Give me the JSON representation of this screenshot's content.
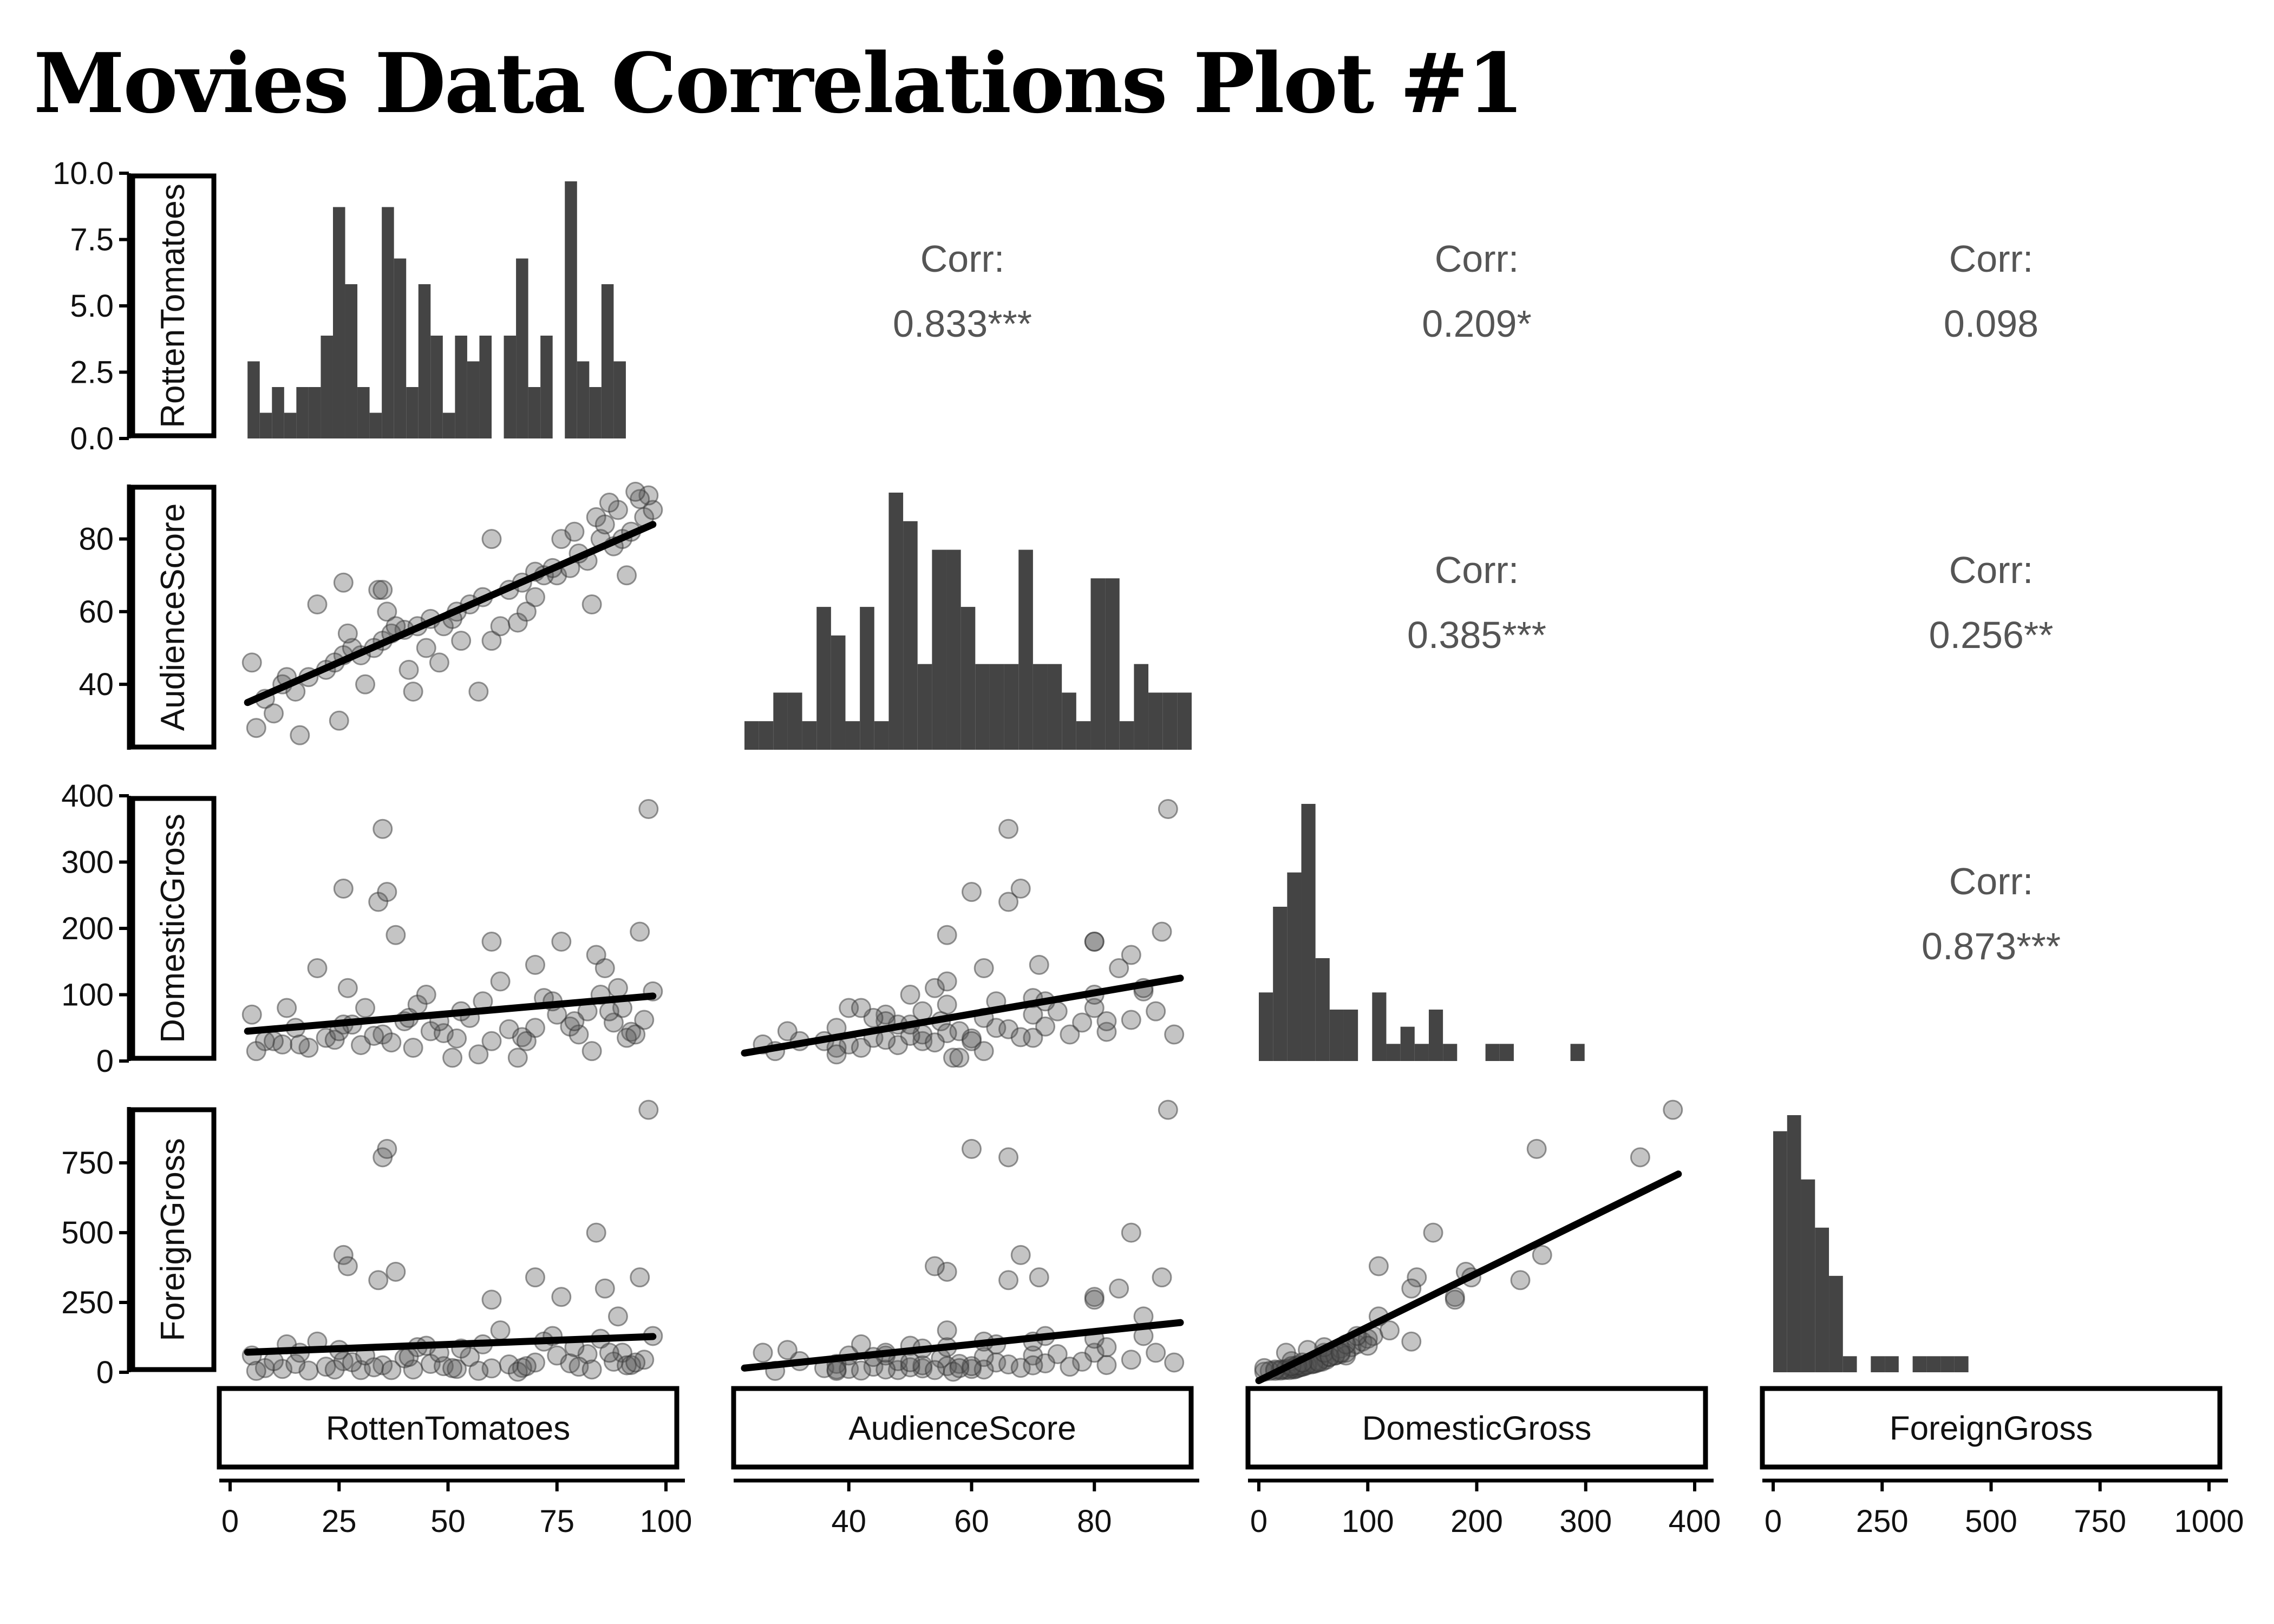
{
  "title": "Movies Data Correlations Plot #1",
  "colors": {
    "bar": "#444444",
    "point": "#555555",
    "line": "#000000",
    "corr": "#555555"
  },
  "chart_data": {
    "type": "scatter",
    "title": "Movies Data Correlations Plot #1",
    "variables": [
      "RottenTomatoes",
      "AudienceScore",
      "DomesticGross",
      "ForeignGross"
    ],
    "x_ranges": [
      [
        0,
        100
      ],
      [
        23,
        94
      ],
      [
        0,
        400
      ],
      [
        0,
        1000
      ]
    ],
    "x_ticks": [
      [
        0,
        25,
        50,
        75,
        100
      ],
      [
        40,
        60,
        80
      ],
      [
        0,
        100,
        200,
        300,
        400
      ],
      [
        0,
        250,
        500,
        750,
        1000
      ]
    ],
    "x_tick_labels": [
      [
        "0",
        "25",
        "50",
        "75",
        "100"
      ],
      [
        "40",
        "60",
        "80"
      ],
      [
        "0",
        "100",
        "200",
        "300",
        "400"
      ],
      [
        "0",
        "250",
        "500",
        "750",
        "1000"
      ]
    ],
    "y_ranges": [
      [
        0,
        10
      ],
      [
        22,
        95
      ],
      [
        0,
        400
      ],
      [
        0,
        950
      ]
    ],
    "y_ticks": [
      [
        0,
        2.5,
        5,
        7.5,
        10
      ],
      [
        40,
        60,
        80
      ],
      [
        0,
        100,
        200,
        300,
        400
      ],
      [
        0,
        250,
        500,
        750
      ]
    ],
    "y_tick_labels": [
      [
        "0.0",
        "2.5",
        "5.0",
        "7.5",
        "10.0"
      ],
      [
        "40",
        "60",
        "80"
      ],
      [
        "0",
        "100",
        "200",
        "300",
        "400"
      ],
      [
        "0",
        "250",
        "500",
        "750"
      ]
    ],
    "correlations": [
      {
        "row": 0,
        "col": 1,
        "label": "Corr:",
        "value": "0.833***"
      },
      {
        "row": 0,
        "col": 2,
        "label": "Corr:",
        "value": "0.209*"
      },
      {
        "row": 0,
        "col": 3,
        "label": "Corr:",
        "value": "0.098"
      },
      {
        "row": 1,
        "col": 2,
        "label": "Corr:",
        "value": "0.385***"
      },
      {
        "row": 1,
        "col": 3,
        "label": "Corr:",
        "value": "0.256**"
      },
      {
        "row": 2,
        "col": 3,
        "label": "Corr:",
        "value": "0.873***"
      }
    ],
    "histograms": [
      {
        "start": 4,
        "width": 2.8,
        "counts": [
          3,
          1,
          2,
          1,
          2,
          2,
          4,
          9,
          6,
          2,
          1,
          9,
          7,
          2,
          6,
          4,
          1,
          4,
          3,
          4,
          0,
          4,
          7,
          2,
          4,
          0,
          10,
          3,
          2,
          6,
          3
        ]
      },
      {
        "start": 23,
        "width": 2.35,
        "counts": [
          1,
          1,
          2,
          2,
          1,
          5,
          4,
          1,
          5,
          1,
          9,
          8,
          3,
          7,
          7,
          5,
          3,
          3,
          3,
          7,
          3,
          3,
          2,
          1,
          6,
          6,
          1,
          3,
          2,
          2,
          2
        ]
      },
      {
        "start": 0,
        "width": 13,
        "counts": [
          4,
          9,
          11,
          15,
          6,
          3,
          3,
          0,
          4,
          1,
          2,
          1,
          3,
          1,
          0,
          0,
          1,
          1,
          0,
          0,
          0,
          0,
          1
        ]
      },
      {
        "start": 0,
        "width": 32,
        "counts": [
          15,
          16,
          12,
          9,
          6,
          1,
          0,
          1,
          1,
          0,
          1,
          1,
          1,
          1,
          0,
          0,
          0,
          0,
          0,
          0,
          0,
          0,
          0,
          0,
          0,
          0,
          0,
          0
        ]
      }
    ],
    "regressions": [
      {
        "row": 1,
        "col": 0,
        "x": [
          4,
          97
        ],
        "y": [
          35,
          84
        ]
      },
      {
        "row": 2,
        "col": 0,
        "x": [
          4,
          97
        ],
        "y": [
          45,
          98
        ]
      },
      {
        "row": 2,
        "col": 1,
        "x": [
          23,
          94
        ],
        "y": [
          12,
          125
        ]
      },
      {
        "row": 3,
        "col": 0,
        "x": [
          4,
          97
        ],
        "y": [
          72,
          128
        ]
      },
      {
        "row": 3,
        "col": 1,
        "x": [
          23,
          94
        ],
        "y": [
          15,
          178
        ]
      },
      {
        "row": 3,
        "col": 2,
        "x": [
          0,
          385
        ],
        "y": [
          -30,
          710
        ]
      }
    ],
    "movies": [
      {
        "rt": 30,
        "aud": 48,
        "dom": 24,
        "for": 8
      },
      {
        "rt": 60,
        "aud": 52,
        "dom": 30,
        "for": 14
      },
      {
        "rt": 22,
        "aud": 44,
        "dom": 35,
        "for": 20
      },
      {
        "rt": 35,
        "aud": 52,
        "dom": 40,
        "for": 25
      },
      {
        "rt": 46,
        "aud": 58,
        "dom": 45,
        "for": 30
      },
      {
        "rt": 70,
        "aud": 64,
        "dom": 50,
        "for": 35
      },
      {
        "rt": 12,
        "aud": 40,
        "dom": 25,
        "for": 12
      },
      {
        "rt": 26,
        "aud": 48,
        "dom": 55,
        "for": 40
      },
      {
        "rt": 40,
        "aud": 55,
        "dom": 60,
        "for": 50
      },
      {
        "rt": 55,
        "aud": 62,
        "dom": 65,
        "for": 55
      },
      {
        "rt": 75,
        "aud": 70,
        "dom": 70,
        "for": 60
      },
      {
        "rt": 82,
        "aud": 74,
        "dom": 75,
        "for": 65
      },
      {
        "rt": 90,
        "aud": 80,
        "dom": 80,
        "for": 70
      },
      {
        "rt": 18,
        "aud": 42,
        "dom": 20,
        "for": 6
      },
      {
        "rt": 33,
        "aud": 50,
        "dom": 38,
        "for": 18
      },
      {
        "rt": 49,
        "aud": 56,
        "dom": 42,
        "for": 22
      },
      {
        "rt": 64,
        "aud": 66,
        "dom": 48,
        "for": 28
      },
      {
        "rt": 78,
        "aud": 72,
        "dom": 52,
        "for": 32
      },
      {
        "rt": 88,
        "aud": 78,
        "dom": 58,
        "for": 38
      },
      {
        "rt": 95,
        "aud": 86,
        "dom": 62,
        "for": 45
      },
      {
        "rt": 8,
        "aud": 36,
        "dom": 30,
        "for": 15
      },
      {
        "rt": 24,
        "aud": 46,
        "dom": 32,
        "for": 10
      },
      {
        "rt": 37,
        "aud": 54,
        "dom": 28,
        "for": 8
      },
      {
        "rt": 52,
        "aud": 60,
        "dom": 34,
        "for": 12
      },
      {
        "rt": 67,
        "aud": 68,
        "dom": 36,
        "for": 16
      },
      {
        "rt": 80,
        "aud": 76,
        "dom": 40,
        "for": 20
      },
      {
        "rt": 92,
        "aud": 82,
        "dom": 44,
        "for": 26
      },
      {
        "rt": 15,
        "aud": 38,
        "dom": 50,
        "for": 30
      },
      {
        "rt": 28,
        "aud": 50,
        "dom": 55,
        "for": 36
      },
      {
        "rt": 43,
        "aud": 56,
        "dom": 85,
        "for": 90
      },
      {
        "rt": 58,
        "aud": 64,
        "dom": 90,
        "for": 100
      },
      {
        "rt": 72,
        "aud": 70,
        "dom": 95,
        "for": 110
      },
      {
        "rt": 85,
        "aud": 80,
        "dom": 100,
        "for": 120
      },
      {
        "rt": 97,
        "aud": 88,
        "dom": 105,
        "for": 130
      },
      {
        "rt": 5,
        "aud": 46,
        "dom": 70,
        "for": 60
      },
      {
        "rt": 20,
        "aud": 62,
        "dom": 140,
        "for": 110
      },
      {
        "rt": 34,
        "aud": 66,
        "dom": 240,
        "for": 330
      },
      {
        "rt": 35,
        "aud": 66,
        "dom": 350,
        "for": 770
      },
      {
        "rt": 26,
        "aud": 68,
        "dom": 260,
        "for": 420
      },
      {
        "rt": 36,
        "aud": 60,
        "dom": 255,
        "for": 800
      },
      {
        "rt": 38,
        "aud": 56,
        "dom": 190,
        "for": 360
      },
      {
        "rt": 27,
        "aud": 54,
        "dom": 110,
        "for": 380
      },
      {
        "rt": 96,
        "aud": 92,
        "dom": 380,
        "for": 940
      },
      {
        "rt": 94,
        "aud": 91,
        "dom": 195,
        "for": 340
      },
      {
        "rt": 84,
        "aud": 86,
        "dom": 160,
        "for": 500
      },
      {
        "rt": 76,
        "aud": 80,
        "dom": 180,
        "for": 270
      },
      {
        "rt": 70,
        "aud": 71,
        "dom": 145,
        "for": 340
      },
      {
        "rt": 60,
        "aud": 80,
        "dom": 180,
        "for": 260
      },
      {
        "rt": 86,
        "aud": 84,
        "dom": 140,
        "for": 300
      },
      {
        "rt": 89,
        "aud": 88,
        "dom": 110,
        "for": 200
      },
      {
        "rt": 45,
        "aud": 50,
        "dom": 100,
        "for": 95
      },
      {
        "rt": 10,
        "aud": 32,
        "dom": 30,
        "for": 40
      },
      {
        "rt": 6,
        "aud": 28,
        "dom": 15,
        "for": 5
      },
      {
        "rt": 16,
        "aud": 26,
        "dom": 25,
        "for": 70
      },
      {
        "rt": 25,
        "aud": 30,
        "dom": 45,
        "for": 80
      },
      {
        "rt": 42,
        "aud": 38,
        "dom": 20,
        "for": 10
      },
      {
        "rt": 57,
        "aud": 38,
        "dom": 10,
        "for": 5
      },
      {
        "rt": 66,
        "aud": 57,
        "dom": 5,
        "for": 2
      },
      {
        "rt": 83,
        "aud": 62,
        "dom": 15,
        "for": 10
      },
      {
        "rt": 91,
        "aud": 70,
        "dom": 35,
        "for": 25
      },
      {
        "rt": 48,
        "aud": 46,
        "dom": 60,
        "for": 70
      },
      {
        "rt": 53,
        "aud": 52,
        "dom": 75,
        "for": 85
      },
      {
        "rt": 62,
        "aud": 56,
        "dom": 120,
        "for": 150
      },
      {
        "rt": 74,
        "aud": 72,
        "dom": 90,
        "for": 130
      },
      {
        "rt": 79,
        "aud": 82,
        "dom": 60,
        "for": 90
      },
      {
        "rt": 31,
        "aud": 40,
        "dom": 80,
        "for": 60
      },
      {
        "rt": 41,
        "aud": 44,
        "dom": 65,
        "for": 55
      },
      {
        "rt": 13,
        "aud": 42,
        "dom": 80,
        "for": 100
      },
      {
        "rt": 68,
        "aud": 60,
        "dom": 30,
        "for": 22
      },
      {
        "rt": 51,
        "aud": 58,
        "dom": 5,
        "for": 15
      },
      {
        "rt": 87,
        "aud": 90,
        "dom": 75,
        "for": 70
      },
      {
        "rt": 93,
        "aud": 93,
        "dom": 40,
        "for": 35
      }
    ]
  }
}
